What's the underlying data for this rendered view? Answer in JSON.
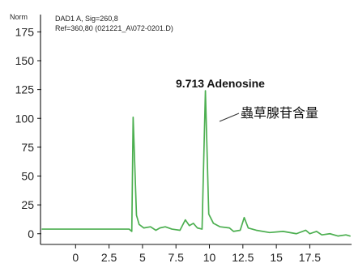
{
  "chart_data": {
    "type": "line",
    "header": {
      "ylabel_unit": "Norm",
      "signal": "DAD1 A, Sig=260,8",
      "reference": "Ref=360,80 (021221_A\\072-0201.D)"
    },
    "annotation": {
      "peak_label": "9.713 Adenosine",
      "side_label": "蟲草腺苷含量"
    },
    "x_ticks": [
      0,
      2.5,
      5,
      7.5,
      10,
      12.5,
      15,
      17.5
    ],
    "x_tick_labels": [
      "0",
      "2.5",
      "5",
      "7.5",
      "10",
      "12.5",
      "15",
      "17.5"
    ],
    "y_ticks": [
      0,
      25,
      50,
      75,
      100,
      125,
      150,
      175
    ],
    "y_tick_labels": [
      "0",
      "25",
      "50",
      "75",
      "100",
      "125",
      "150",
      "175"
    ],
    "xlim": [
      -2.5,
      20.5
    ],
    "ylim": [
      -10,
      190
    ],
    "series": [
      {
        "color": "#4caf50",
        "points": [
          [
            -2.5,
            4
          ],
          [
            4.0,
            4
          ],
          [
            4.2,
            2
          ],
          [
            4.3,
            101
          ],
          [
            4.55,
            16
          ],
          [
            4.75,
            8
          ],
          [
            5.1,
            5
          ],
          [
            5.6,
            6
          ],
          [
            6.0,
            3
          ],
          [
            6.3,
            5
          ],
          [
            6.7,
            6
          ],
          [
            7.2,
            4
          ],
          [
            7.8,
            3
          ],
          [
            8.2,
            12
          ],
          [
            8.5,
            7
          ],
          [
            8.8,
            9
          ],
          [
            9.1,
            5
          ],
          [
            9.45,
            4
          ],
          [
            9.7,
            124
          ],
          [
            9.95,
            17
          ],
          [
            10.3,
            9
          ],
          [
            10.8,
            6
          ],
          [
            11.5,
            5
          ],
          [
            11.8,
            2
          ],
          [
            12.3,
            3
          ],
          [
            12.6,
            14
          ],
          [
            12.9,
            5
          ],
          [
            13.5,
            3
          ],
          [
            14.5,
            1
          ],
          [
            15.5,
            2
          ],
          [
            16.5,
            0
          ],
          [
            17.2,
            3
          ],
          [
            17.5,
            0
          ],
          [
            18.0,
            2
          ],
          [
            18.4,
            -1
          ],
          [
            19.0,
            0
          ],
          [
            19.6,
            -2
          ],
          [
            20.2,
            -1
          ],
          [
            20.5,
            -2
          ]
        ]
      }
    ]
  }
}
